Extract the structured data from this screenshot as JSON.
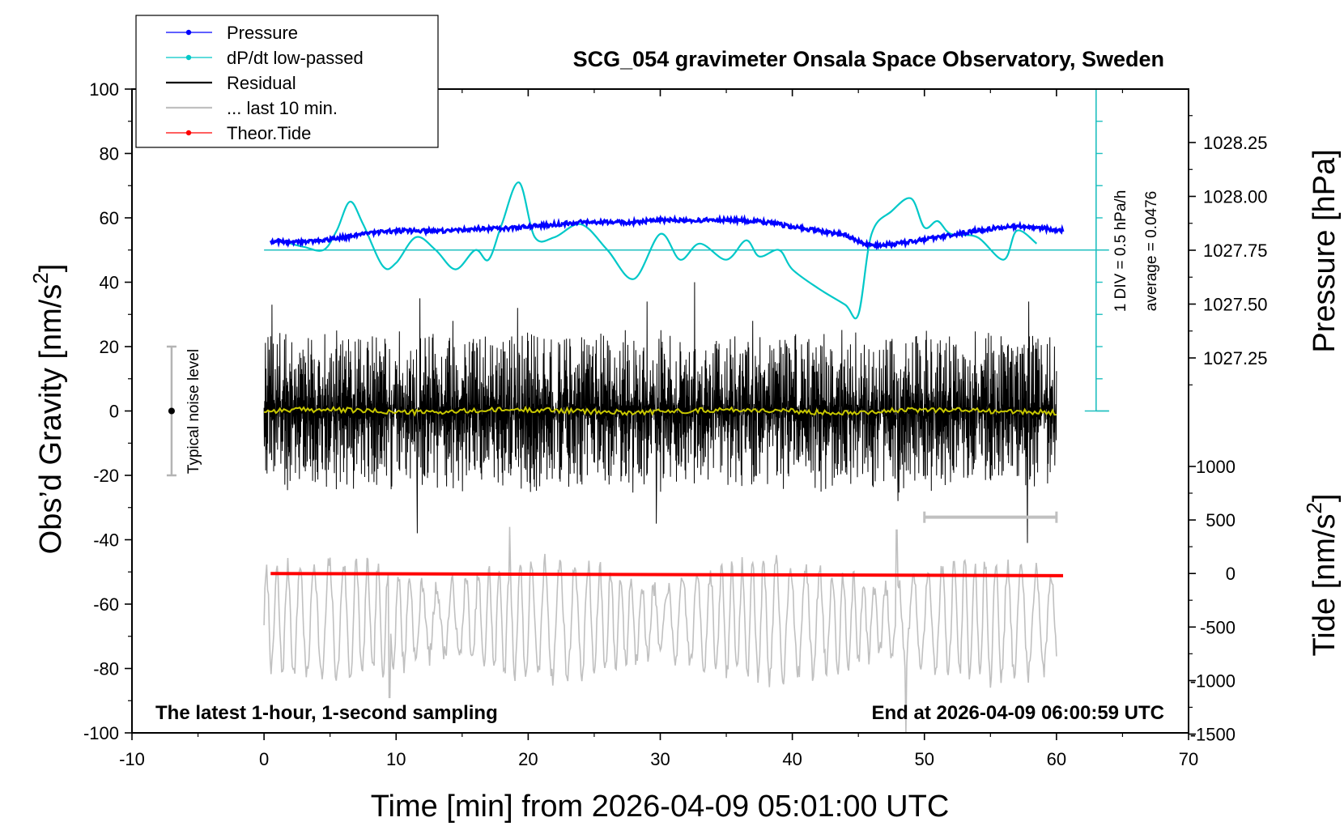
{
  "chart_data": {
    "type": "line",
    "title": "SCG_054 gravimeter Onsala Space Observatory, Sweden",
    "xlabel": "Time [min] from 2026-04-09 05:01:00 UTC",
    "ylabel_left_main": "Obs’d Gravity [nm/s",
    "ylabel_left_sup": "2",
    "ylabel_left_tail": "]",
    "ylabel_right_pressure": "Pressure [hPa]",
    "ylabel_right_tide_main": "Tide [nm/s",
    "ylabel_right_tide_sup": "2",
    "ylabel_right_tide_tail": "]",
    "xlim": [
      -10,
      70
    ],
    "ylim_gravity": [
      -100,
      100
    ],
    "x_ticks": [
      "-10",
      "0",
      "10",
      "20",
      "30",
      "40",
      "50",
      "60",
      "70"
    ],
    "y_ticks_gravity": [
      "100",
      "80",
      "60",
      "40",
      "20",
      "0",
      "-20",
      "-40",
      "-60",
      "-80",
      "-100"
    ],
    "pressure_axis": {
      "ticks": [
        "1028.25",
        "1028.00",
        "1027.75",
        "1027.50",
        "1027.25"
      ],
      "values": [
        1028.25,
        1028.0,
        1027.75,
        1027.5,
        1027.25
      ],
      "unit": "hPa"
    },
    "tide_axis": {
      "ticks": [
        "1000",
        "500",
        "0",
        "-500",
        "-1000",
        "-1500"
      ],
      "values": [
        1000,
        500,
        0,
        -500,
        -1000,
        -1500
      ],
      "unit": "nm/s2"
    },
    "legend": {
      "placement": "top-left",
      "entries": [
        {
          "label": "Pressure",
          "color": "#0000ff",
          "marker": true
        },
        {
          "label": "dP/dt low-passed",
          "color": "#00c8c8",
          "marker": true
        },
        {
          "label": "Residual",
          "color": "#000000",
          "marker": false
        },
        {
          "label": "... last 10 min.",
          "color": "#c0c0c0",
          "marker": false
        },
        {
          "label": "Theor.Tide",
          "color": "#ff0000",
          "marker": true
        }
      ]
    },
    "annotations": {
      "bottom_left": "The latest 1-hour, 1-second sampling",
      "bottom_right": "End at 2026-04-09 06:00:59 UTC",
      "noise_label": "Typical noise level",
      "dpdt_scale": "1 DIV = 0.5 hPa/h",
      "dpdt_average": "average = 0.0476"
    },
    "noise_level": {
      "x": -7,
      "center": 0,
      "half_range": 20
    },
    "dpdt_scale_axis": {
      "x": 63,
      "y_top": 100,
      "y_bottom": 0,
      "baseline": 50
    },
    "last_10_min_bar": {
      "x0": 50,
      "x1": 60,
      "y": -33
    },
    "series": [
      {
        "name": "Pressure",
        "axis": "pressure",
        "color": "#0000ff",
        "x": [
          0.5,
          2,
          4,
          6,
          8,
          10,
          12,
          14,
          16,
          18,
          20,
          22,
          24,
          26,
          28,
          30,
          32,
          34,
          36,
          38,
          40,
          42,
          44,
          45,
          46,
          48,
          50,
          52,
          54,
          56,
          58,
          60.5
        ],
        "values": [
          1027.79,
          1027.79,
          1027.79,
          1027.81,
          1027.83,
          1027.84,
          1027.84,
          1027.84,
          1027.85,
          1027.85,
          1027.86,
          1027.87,
          1027.88,
          1027.88,
          1027.88,
          1027.89,
          1027.89,
          1027.89,
          1027.89,
          1027.88,
          1027.86,
          1027.84,
          1027.82,
          1027.79,
          1027.77,
          1027.78,
          1027.8,
          1027.82,
          1027.84,
          1027.86,
          1027.86,
          1027.84
        ]
      },
      {
        "name": "dP/dt low-passed",
        "axis": "gravity",
        "color": "#00c8c8",
        "x": [
          2,
          3,
          4.5,
          5.5,
          6.5,
          7.5,
          9,
          10,
          11.5,
          13,
          14.5,
          16,
          17,
          18,
          19.3,
          20.5,
          22,
          24,
          26,
          28,
          30,
          31.5,
          33,
          35,
          36.5,
          37.5,
          39,
          40,
          42,
          44,
          45,
          46,
          47.5,
          49,
          50,
          51,
          52,
          54,
          56,
          57,
          58.5
        ],
        "values": [
          52,
          51,
          50,
          56,
          65,
          58,
          45,
          46,
          54,
          50,
          44,
          50,
          47,
          58,
          71,
          54,
          54,
          58,
          50,
          41,
          55,
          47,
          52,
          47,
          53,
          48,
          50,
          44,
          38,
          33,
          30,
          55,
          62,
          66,
          57,
          59,
          55,
          54,
          47,
          56,
          52
        ]
      },
      {
        "name": "Residual",
        "axis": "gravity",
        "color": "#000000",
        "x_range": [
          0,
          60
        ],
        "amplitude": 14,
        "extremes": [
          {
            "x": 0.6,
            "y": 33
          },
          {
            "x": 5.5,
            "y": 25
          },
          {
            "x": 11.8,
            "y": 35
          },
          {
            "x": 11.6,
            "y": -38
          },
          {
            "x": 14.3,
            "y": 28
          },
          {
            "x": 19.2,
            "y": 32
          },
          {
            "x": 29.0,
            "y": 34
          },
          {
            "x": 29.7,
            "y": -35
          },
          {
            "x": 32.6,
            "y": 40
          },
          {
            "x": 37.0,
            "y": 28
          },
          {
            "x": 48.0,
            "y": -28
          },
          {
            "x": 57.9,
            "y": 34
          },
          {
            "x": 57.8,
            "y": -41
          }
        ]
      },
      {
        "name": "Residual mean",
        "axis": "gravity",
        "color": "#c8c800",
        "x_range": [
          0,
          60
        ],
        "level": 0
      },
      {
        "name": "... last 10 min.",
        "axis": "gravity",
        "color": "#c0c0c0",
        "x_range": [
          0,
          60
        ],
        "center": -65,
        "amplitude": 18,
        "extremes": [
          {
            "x": 9.5,
            "y": -89
          },
          {
            "x": 18.6,
            "y": -36
          },
          {
            "x": 47.9,
            "y": -37
          },
          {
            "x": 48.6,
            "y": -100
          }
        ]
      },
      {
        "name": "Theor.Tide",
        "axis": "tide",
        "color": "#ff0000",
        "x": [
          0.5,
          60.5
        ],
        "values": [
          0,
          -20
        ]
      }
    ]
  }
}
